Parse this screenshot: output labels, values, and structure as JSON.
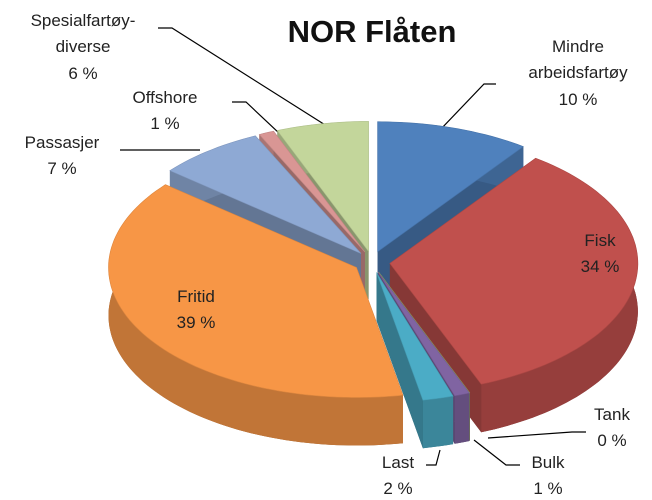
{
  "chart_data": {
    "type": "pie",
    "title": "NOR Flåten",
    "categories": [
      "Mindre arbeidsfartøy",
      "Fisk",
      "Tank",
      "Bulk",
      "Last",
      "Fritid",
      "Passasjer",
      "Offshore",
      "Spesialfartøy-diverse"
    ],
    "values": [
      10,
      34,
      0,
      1,
      2,
      39,
      7,
      1,
      6
    ],
    "value_labels": [
      "10 %",
      "34 %",
      "0 %",
      "1 %",
      "2 %",
      "39 %",
      "7 %",
      "1 %",
      "6 %"
    ],
    "colors": [
      "#4f81bd",
      "#c0504d",
      "#9bbb59",
      "#8064a2",
      "#4bacc6",
      "#f79646",
      "#8ea9d4",
      "#d99694",
      "#c3d69b"
    ]
  }
}
